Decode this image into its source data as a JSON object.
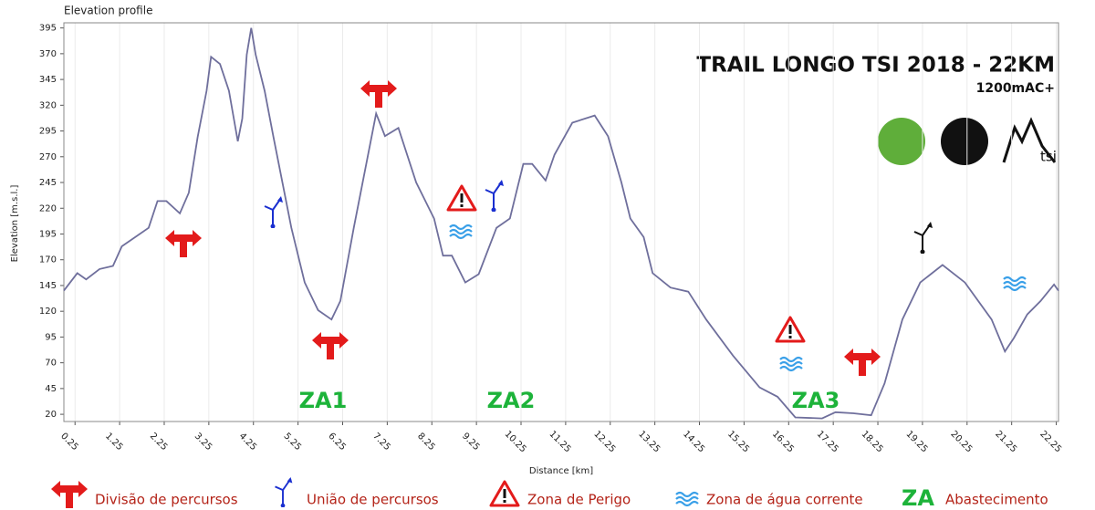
{
  "chart_data": {
    "type": "line",
    "title": "Elevation profile",
    "x_label": "Distance [km]",
    "y_label": "Elevation [m.s.l.]",
    "heading": "TRAIL LONGO TSI 2018 - 22KM",
    "subheading": "1200mAC+",
    "logo_text": "tsi",
    "color": "#6f6f9c",
    "grid": "x",
    "xlim": [
      0,
      22.3
    ],
    "ylim": [
      13,
      400
    ],
    "xticks": [
      0.25,
      1.25,
      2.25,
      3.25,
      4.25,
      5.25,
      6.25,
      7.25,
      8.25,
      9.25,
      10.25,
      11.25,
      12.25,
      13.25,
      14.25,
      15.25,
      16.25,
      17.25,
      18.25,
      19.25,
      20.25,
      21.25,
      22.25
    ],
    "yticks": [
      20,
      45,
      70,
      95,
      120,
      145,
      170,
      195,
      220,
      245,
      270,
      295,
      320,
      345,
      370,
      395
    ],
    "x": [
      0,
      0.3,
      0.5,
      0.8,
      1.1,
      1.3,
      1.6,
      1.9,
      2.1,
      2.3,
      2.6,
      2.8,
      3.0,
      3.2,
      3.3,
      3.5,
      3.7,
      3.9,
      4.0,
      4.1,
      4.2,
      4.3,
      4.5,
      4.7,
      5.1,
      5.4,
      5.7,
      6.0,
      6.2,
      6.5,
      7.0,
      7.2,
      7.5,
      7.9,
      8.3,
      8.5,
      8.7,
      9.0,
      9.3,
      9.7,
      10.0,
      10.3,
      10.5,
      10.8,
      11.0,
      11.4,
      11.9,
      12.2,
      12.5,
      12.7,
      13.0,
      13.2,
      13.6,
      14.0,
      14.4,
      15.0,
      15.6,
      16.0,
      16.4,
      17.0,
      17.3,
      17.7,
      18.1,
      18.4,
      18.8,
      19.2,
      19.7,
      20.2,
      20.8,
      21.1,
      21.3,
      21.6,
      21.9,
      22.2,
      22.3
    ],
    "values": [
      140,
      157,
      151,
      161,
      164,
      183,
      192,
      201,
      227,
      227,
      215,
      235,
      289,
      334,
      367,
      360,
      334,
      285,
      307,
      369,
      395,
      369,
      334,
      289,
      201,
      148,
      121,
      112,
      130,
      201,
      312,
      290,
      298,
      245,
      210,
      174,
      174,
      148,
      156,
      201,
      210,
      263,
      263,
      247,
      272,
      303,
      310,
      290,
      245,
      210,
      192,
      157,
      143,
      139,
      112,
      77,
      46,
      37,
      17,
      16,
      22,
      21,
      19,
      50,
      112,
      148,
      165,
      148,
      112,
      81,
      94,
      117,
      130,
      146,
      140
    ],
    "zones": [
      "ZA1",
      "ZA2",
      "ZA3"
    ],
    "legend": [
      "Divisão de percursos",
      "União de percursos",
      "Zona de Perigo",
      "Zona de água corrente",
      "ZA",
      "Abastecimento"
    ]
  }
}
